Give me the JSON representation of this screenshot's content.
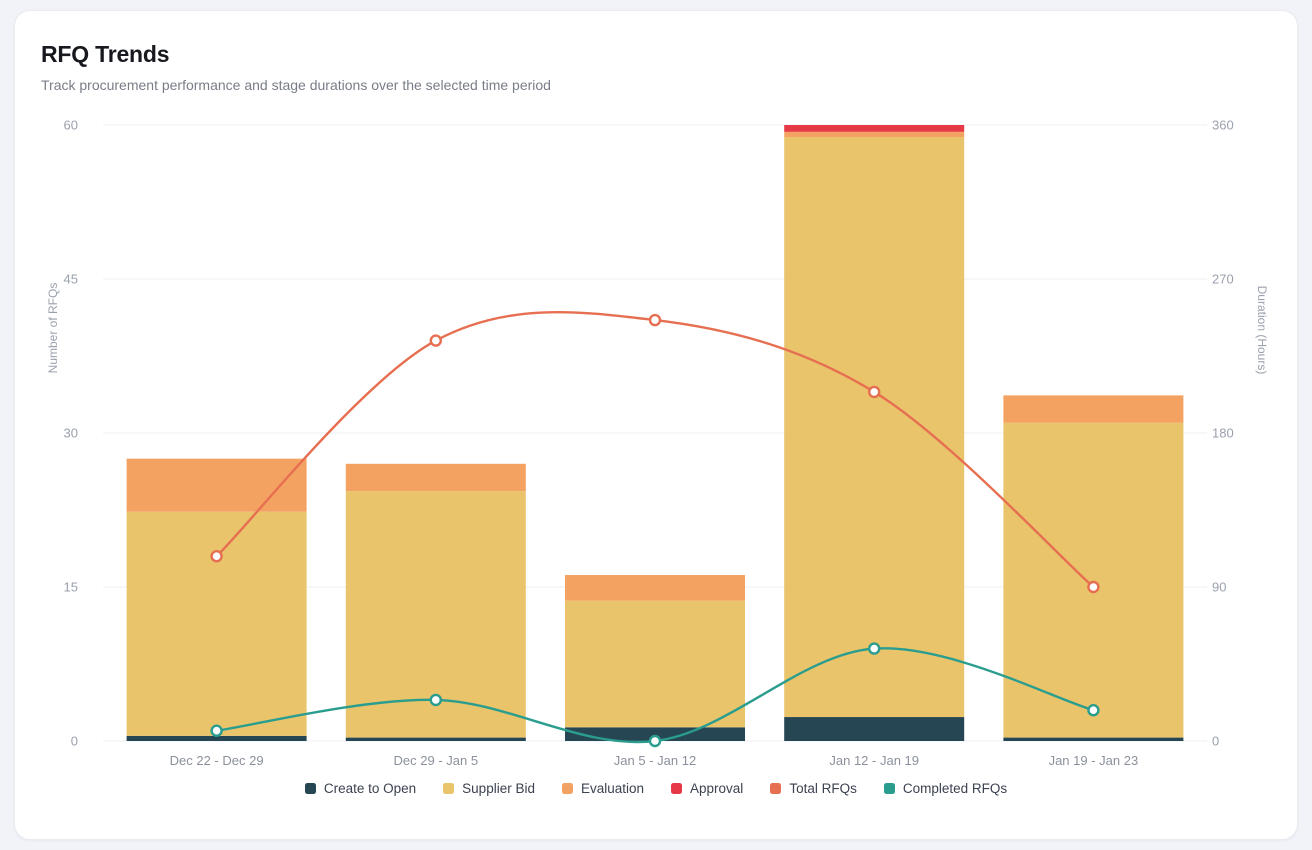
{
  "card": {
    "title": "RFQ Trends",
    "subtitle": "Track procurement performance and stage durations over the selected time period"
  },
  "chart_data": {
    "type": "stacked-bar+line",
    "title": "RFQ Trends",
    "categories": [
      "Dec 22 - Dec 29",
      "Dec 29 - Jan 5",
      "Jan 5 - Jan 12",
      "Jan 12 - Jan 19",
      "Jan 19 - Jan 23"
    ],
    "bar_series": [
      {
        "name": "Create to Open",
        "axis": "right",
        "color": "#264653",
        "values": [
          3,
          2,
          8,
          14,
          2
        ]
      },
      {
        "name": "Supplier Bid",
        "axis": "right",
        "color": "#e9c46a",
        "values": [
          131,
          144,
          74,
          339,
          184
        ]
      },
      {
        "name": "Evaluation",
        "axis": "right",
        "color": "#f4a261",
        "values": [
          31,
          16,
          15,
          3,
          16
        ]
      },
      {
        "name": "Approval",
        "axis": "right",
        "color": "#e63946",
        "values": [
          0,
          0,
          0,
          4,
          0
        ]
      }
    ],
    "line_series": [
      {
        "name": "Total RFQs",
        "axis": "left",
        "color": "#e76f51",
        "values": [
          18,
          39,
          41,
          34,
          15
        ]
      },
      {
        "name": "Completed RFQs",
        "axis": "left",
        "color": "#2a9d8f",
        "values": [
          1,
          4,
          0,
          9,
          3
        ]
      }
    ],
    "left_axis": {
      "label": "Number of RFQs",
      "range": [
        0,
        60
      ],
      "ticks": [
        0,
        15,
        30,
        45,
        60
      ]
    },
    "right_axis": {
      "label": "Duration (Hours)",
      "range": [
        0,
        360
      ],
      "ticks": [
        0,
        90,
        180,
        270,
        360
      ]
    },
    "legend": [
      "Create to Open",
      "Supplier Bid",
      "Evaluation",
      "Approval",
      "Total RFQs",
      "Completed RFQs"
    ],
    "legend_position": "bottom",
    "grid": true
  }
}
